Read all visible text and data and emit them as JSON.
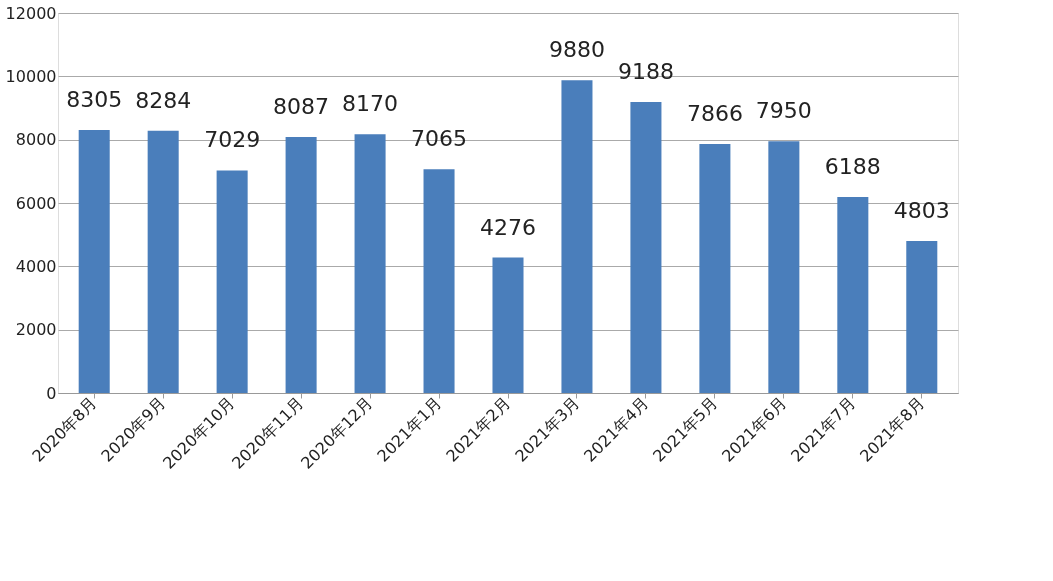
{
  "chart_data": {
    "type": "bar",
    "categories": [
      "2020年8月",
      "2020年9月",
      "2020年10月",
      "2020年11月",
      "2020年12月",
      "2021年1月",
      "2021年2月",
      "2021年3月",
      "2021年4月",
      "2021年5月",
      "2021年6月",
      "2021年7月",
      "2021年8月"
    ],
    "values": [
      8305,
      8284,
      7029,
      8087,
      8170,
      7065,
      4276,
      9880,
      9188,
      7866,
      7950,
      6188,
      4803
    ],
    "color": "#4a7ebb",
    "ylim": [
      0,
      12000
    ],
    "yticks": [
      0,
      2000,
      4000,
      6000,
      8000,
      10000,
      12000
    ],
    "grid": "y",
    "data_labels": true
  }
}
